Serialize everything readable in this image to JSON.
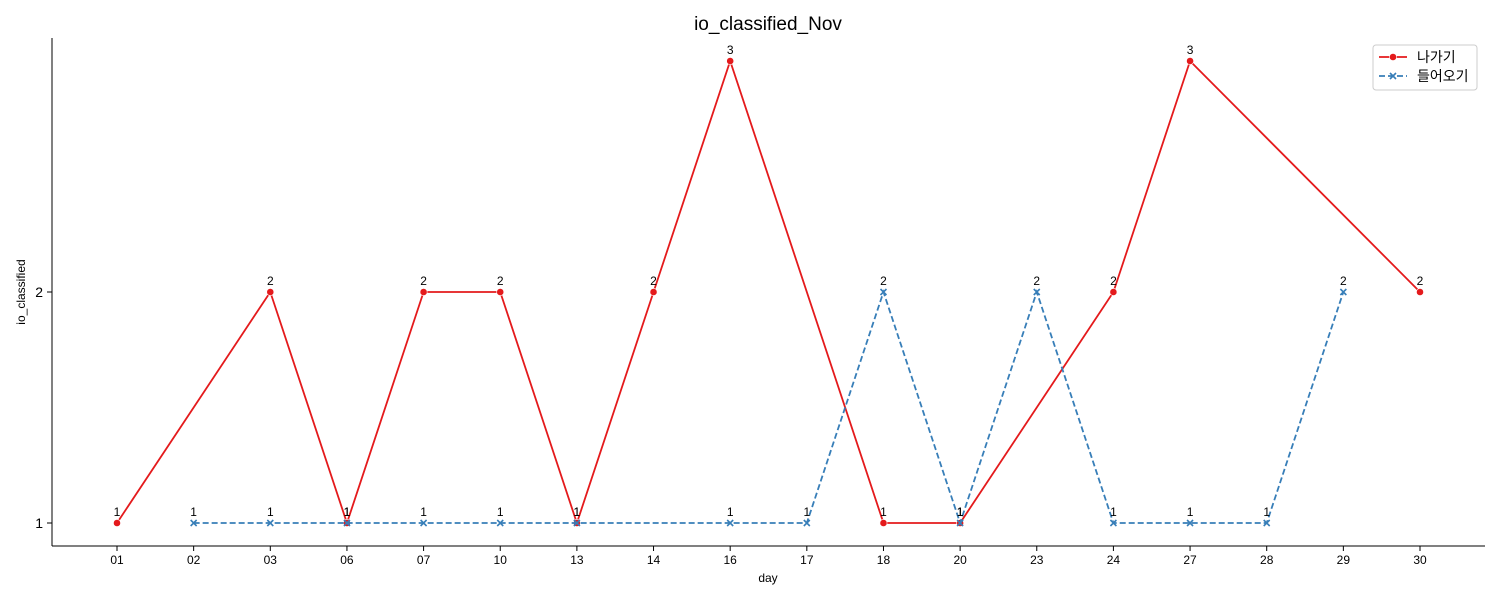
{
  "chart_data": {
    "type": "line",
    "title": "io_classified_Nov",
    "xlabel": "day",
    "ylabel": "io_classified",
    "categories": [
      "01",
      "02",
      "03",
      "06",
      "07",
      "10",
      "13",
      "14",
      "16",
      "17",
      "18",
      "20",
      "23",
      "24",
      "27",
      "28",
      "29",
      "30"
    ],
    "yticks": [
      1,
      2
    ],
    "ylim": [
      0.9,
      3.1
    ],
    "grid": false,
    "legend_position": "top-right",
    "series": [
      {
        "name": "나가기",
        "color": "#e41a1c",
        "line_style": "solid",
        "marker": "circle",
        "points": [
          {
            "x": "01",
            "y": 1
          },
          {
            "x": "03",
            "y": 2
          },
          {
            "x": "06",
            "y": 1
          },
          {
            "x": "07",
            "y": 2
          },
          {
            "x": "10",
            "y": 2
          },
          {
            "x": "13",
            "y": 1
          },
          {
            "x": "14",
            "y": 2
          },
          {
            "x": "16",
            "y": 3
          },
          {
            "x": "18",
            "y": 1
          },
          {
            "x": "20",
            "y": 1
          },
          {
            "x": "24",
            "y": 2
          },
          {
            "x": "27",
            "y": 3
          },
          {
            "x": "30",
            "y": 2
          }
        ]
      },
      {
        "name": "들어오기",
        "color": "#377eb8",
        "line_style": "dashed",
        "marker": "x",
        "points": [
          {
            "x": "02",
            "y": 1
          },
          {
            "x": "03",
            "y": 1
          },
          {
            "x": "06",
            "y": 1
          },
          {
            "x": "07",
            "y": 1
          },
          {
            "x": "10",
            "y": 1
          },
          {
            "x": "13",
            "y": 1
          },
          {
            "x": "16",
            "y": 1
          },
          {
            "x": "17",
            "y": 1
          },
          {
            "x": "18",
            "y": 2
          },
          {
            "x": "20",
            "y": 1
          },
          {
            "x": "23",
            "y": 2
          },
          {
            "x": "24",
            "y": 1
          },
          {
            "x": "27",
            "y": 1
          },
          {
            "x": "28",
            "y": 1
          },
          {
            "x": "29",
            "y": 2
          }
        ]
      }
    ]
  }
}
